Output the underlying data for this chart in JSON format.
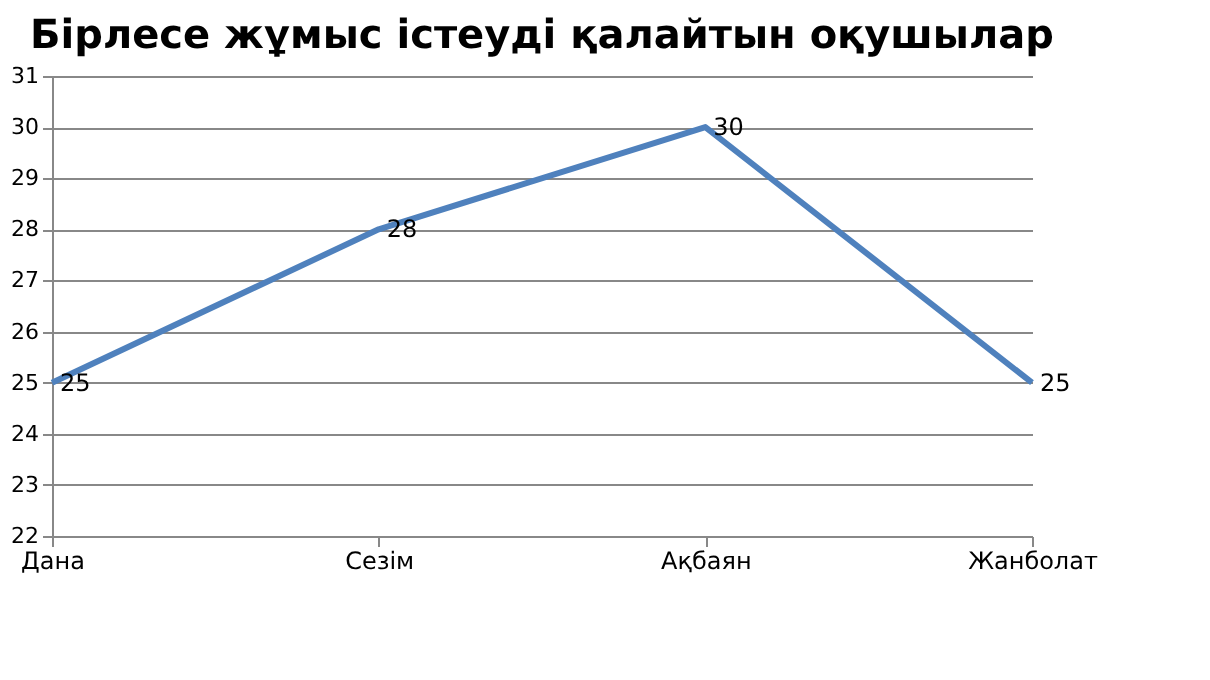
{
  "chart_data": {
    "type": "line",
    "title": "Бірлесе жұмыс істеуді қалайтын оқушылар",
    "categories": [
      "Дана",
      "Сезім",
      "Ақбаян",
      "Жанболат"
    ],
    "series": [
      {
        "color": "#4f81bd",
        "values": [
          25,
          28,
          30,
          25
        ]
      }
    ],
    "ylim": [
      22,
      31
    ],
    "yticks": [
      22,
      23,
      24,
      25,
      26,
      27,
      28,
      29,
      30,
      31
    ],
    "grid": "y",
    "data_labels": true,
    "marker": "none",
    "line_style": "solid"
  }
}
